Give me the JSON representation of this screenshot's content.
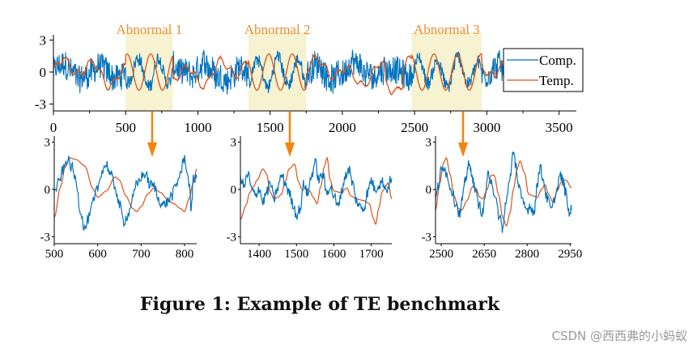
{
  "chart_data": {
    "type": "line",
    "colors": {
      "comp": "#0072bd",
      "temp": "#d95319",
      "highlight": "#f7f2d0",
      "arrow": "#f5820d",
      "region_label": "#f08a24"
    },
    "main": {
      "xlim": [
        0,
        3620
      ],
      "ylim": [
        -3.6,
        3.6
      ],
      "xticks": [
        0,
        500,
        1000,
        1500,
        2000,
        2500,
        3000,
        3500
      ],
      "yticks": [
        3,
        0,
        -3
      ],
      "legend": {
        "position": "top-right",
        "entries": [
          "Comp.",
          "Temp."
        ]
      },
      "series": [
        {
          "name": "Comp.",
          "key": "comp",
          "style": "noisy",
          "n": 3400,
          "amplitude": 1.0
        },
        {
          "name": "Temp.",
          "key": "temp",
          "style": "smooth",
          "n": 3400,
          "amplitude": 0.9
        }
      ],
      "regions": [
        {
          "label": "Abnormal 1",
          "range": [
            500,
            826
          ]
        },
        {
          "label": "Abnormal 2",
          "range": [
            1350,
            1750
          ]
        },
        {
          "label": "Abnormal 3",
          "range": [
            2480,
            2965
          ]
        }
      ]
    },
    "zooms": [
      {
        "name": "Abnormal 1 detail",
        "xlim": [
          500,
          828
        ],
        "ylim": [
          -3.3,
          3.3
        ],
        "xticks": [
          500,
          600,
          700,
          800
        ],
        "yticks": [
          3,
          0,
          -3
        ],
        "comp": [
          [
            500,
            -0.2
          ],
          [
            510,
            0.4
          ],
          [
            520,
            1.2
          ],
          [
            530,
            1.9
          ],
          [
            540,
            1.4
          ],
          [
            550,
            0.6
          ],
          [
            560,
            -1.3
          ],
          [
            570,
            -2.5
          ],
          [
            580,
            -1.8
          ],
          [
            590,
            -0.8
          ],
          [
            600,
            0.1
          ],
          [
            610,
            1.2
          ],
          [
            620,
            1.6
          ],
          [
            630,
            0.9
          ],
          [
            640,
            0.2
          ],
          [
            650,
            -1.0
          ],
          [
            660,
            -2.0
          ],
          [
            670,
            -1.6
          ],
          [
            680,
            -0.6
          ],
          [
            690,
            0.3
          ],
          [
            700,
            0.8
          ],
          [
            710,
            1.0
          ],
          [
            720,
            0.3
          ],
          [
            730,
            0.2
          ],
          [
            740,
            -0.6
          ],
          [
            750,
            -1.0
          ],
          [
            760,
            -0.8
          ],
          [
            770,
            -0.4
          ],
          [
            780,
            0.2
          ],
          [
            790,
            1.0
          ],
          [
            800,
            2.0
          ],
          [
            810,
            0.5
          ],
          [
            815,
            -1.2
          ],
          [
            820,
            0.6
          ],
          [
            828,
            0.7
          ]
        ],
        "temp": [
          [
            500,
            -1.8
          ],
          [
            515,
            0.2
          ],
          [
            525,
            1.4
          ],
          [
            535,
            2.0
          ],
          [
            550,
            1.9
          ],
          [
            570,
            1.5
          ],
          [
            590,
            0.0
          ],
          [
            600,
            -0.5
          ],
          [
            620,
            -0.1
          ],
          [
            640,
            0.8
          ],
          [
            650,
            0.6
          ],
          [
            665,
            -0.4
          ],
          [
            680,
            -1.2
          ],
          [
            690,
            -1.4
          ],
          [
            700,
            -1.1
          ],
          [
            715,
            -0.3
          ],
          [
            730,
            0.1
          ],
          [
            745,
            -0.2
          ],
          [
            760,
            -0.6
          ],
          [
            775,
            -0.9
          ],
          [
            790,
            -1.2
          ],
          [
            800,
            -1.4
          ],
          [
            810,
            -0.6
          ],
          [
            820,
            0.4
          ],
          [
            828,
            1.3
          ]
        ]
      },
      {
        "name": "Abnormal 2 detail",
        "xlim": [
          1350,
          1755
        ],
        "ylim": [
          -3.3,
          3.3
        ],
        "xticks": [
          1400,
          1500,
          1600,
          1700
        ],
        "yticks": [
          3,
          0,
          -3
        ],
        "comp": [
          [
            1350,
            0.8
          ],
          [
            1360,
            0.2
          ],
          [
            1370,
            1.0
          ],
          [
            1380,
            0.0
          ],
          [
            1390,
            -0.4
          ],
          [
            1400,
            0.1
          ],
          [
            1410,
            -0.8
          ],
          [
            1420,
            -0.2
          ],
          [
            1430,
            0.4
          ],
          [
            1440,
            -0.6
          ],
          [
            1450,
            0.1
          ],
          [
            1460,
            0.9
          ],
          [
            1470,
            0.4
          ],
          [
            1480,
            -0.2
          ],
          [
            1490,
            -0.9
          ],
          [
            1500,
            -1.6
          ],
          [
            1510,
            -1.2
          ],
          [
            1520,
            0.4
          ],
          [
            1530,
            -0.3
          ],
          [
            1540,
            0.9
          ],
          [
            1550,
            1.7
          ],
          [
            1560,
            0.6
          ],
          [
            1570,
            1.0
          ],
          [
            1580,
            -0.2
          ],
          [
            1590,
            0.2
          ],
          [
            1600,
            -0.4
          ],
          [
            1610,
            -1.1
          ],
          [
            1620,
            -0.2
          ],
          [
            1630,
            0.8
          ],
          [
            1640,
            1.3
          ],
          [
            1650,
            0.4
          ],
          [
            1660,
            -0.7
          ],
          [
            1670,
            -1.1
          ],
          [
            1680,
            -1.2
          ],
          [
            1690,
            -0.2
          ],
          [
            1700,
            0.6
          ],
          [
            1710,
            0.0
          ],
          [
            1720,
            0.3
          ],
          [
            1730,
            0.5
          ],
          [
            1740,
            0.0
          ],
          [
            1755,
            0.7
          ]
        ],
        "temp": [
          [
            1350,
            -1.9
          ],
          [
            1365,
            -1.0
          ],
          [
            1375,
            -0.2
          ],
          [
            1385,
            0.2
          ],
          [
            1395,
            0.6
          ],
          [
            1410,
            1.3
          ],
          [
            1420,
            1.0
          ],
          [
            1430,
            -0.2
          ],
          [
            1440,
            -0.6
          ],
          [
            1450,
            -0.5
          ],
          [
            1460,
            -0.3
          ],
          [
            1470,
            0.5
          ],
          [
            1480,
            1.3
          ],
          [
            1495,
            1.6
          ],
          [
            1505,
            0.5
          ],
          [
            1515,
            0.0
          ],
          [
            1525,
            0.1
          ],
          [
            1535,
            -0.1
          ],
          [
            1545,
            -0.5
          ],
          [
            1555,
            -0.9
          ],
          [
            1565,
            0.2
          ],
          [
            1575,
            1.5
          ],
          [
            1582,
            2.0
          ],
          [
            1590,
            0.6
          ],
          [
            1600,
            -0.1
          ],
          [
            1620,
            -0.2
          ],
          [
            1635,
            0.1
          ],
          [
            1645,
            -0.4
          ],
          [
            1660,
            -0.6
          ],
          [
            1680,
            -0.7
          ],
          [
            1695,
            -0.9
          ],
          [
            1705,
            -1.8
          ],
          [
            1712,
            -2.2
          ],
          [
            1720,
            -1.2
          ],
          [
            1730,
            -0.1
          ],
          [
            1745,
            0.4
          ],
          [
            1755,
            -0.6
          ]
        ]
      },
      {
        "name": "Abnormal 3 detail",
        "xlim": [
          2480,
          2955
        ],
        "ylim": [
          -3.3,
          3.3
        ],
        "xticks": [
          2500,
          2650,
          2800,
          2950
        ],
        "yticks": [
          3,
          0,
          -3
        ],
        "comp": [
          [
            2480,
            -0.6
          ],
          [
            2490,
            0.2
          ],
          [
            2500,
            1.2
          ],
          [
            2510,
            1.5
          ],
          [
            2520,
            0.9
          ],
          [
            2535,
            0.0
          ],
          [
            2550,
            -0.8
          ],
          [
            2565,
            -1.6
          ],
          [
            2575,
            -0.5
          ],
          [
            2585,
            0.7
          ],
          [
            2595,
            1.5
          ],
          [
            2605,
            1.2
          ],
          [
            2615,
            0.2
          ],
          [
            2630,
            -0.9
          ],
          [
            2645,
            -1.5
          ],
          [
            2655,
            -0.2
          ],
          [
            2665,
            1.0
          ],
          [
            2675,
            0.6
          ],
          [
            2690,
            -0.8
          ],
          [
            2705,
            -1.8
          ],
          [
            2715,
            -2.5
          ],
          [
            2725,
            -1.0
          ],
          [
            2740,
            0.8
          ],
          [
            2750,
            2.2
          ],
          [
            2760,
            1.7
          ],
          [
            2770,
            0.2
          ],
          [
            2785,
            -0.9
          ],
          [
            2800,
            -1.3
          ],
          [
            2810,
            -1.0
          ],
          [
            2825,
            -1.5
          ],
          [
            2835,
            0.4
          ],
          [
            2845,
            1.4
          ],
          [
            2855,
            0.7
          ],
          [
            2870,
            -0.6
          ],
          [
            2885,
            -1.3
          ],
          [
            2900,
            -0.3
          ],
          [
            2915,
            0.9
          ],
          [
            2925,
            0.5
          ],
          [
            2935,
            -0.2
          ],
          [
            2945,
            -1.4
          ],
          [
            2955,
            -1.3
          ]
        ],
        "temp": [
          [
            2480,
            -1.3
          ],
          [
            2495,
            0.4
          ],
          [
            2508,
            1.7
          ],
          [
            2518,
            2.0
          ],
          [
            2530,
            1.0
          ],
          [
            2545,
            -0.4
          ],
          [
            2560,
            -1.2
          ],
          [
            2572,
            -1.3
          ],
          [
            2590,
            -0.7
          ],
          [
            2610,
            0.2
          ],
          [
            2620,
            0.1
          ],
          [
            2635,
            -0.5
          ],
          [
            2645,
            -0.6
          ],
          [
            2660,
            0.0
          ],
          [
            2675,
            0.9
          ],
          [
            2685,
            0.9
          ],
          [
            2700,
            -0.3
          ],
          [
            2715,
            -1.8
          ],
          [
            2728,
            -2.3
          ],
          [
            2740,
            -1.5
          ],
          [
            2752,
            0.0
          ],
          [
            2765,
            1.3
          ],
          [
            2775,
            1.8
          ],
          [
            2790,
            1.1
          ],
          [
            2805,
            -0.3
          ],
          [
            2820,
            -0.4
          ],
          [
            2835,
            -0.5
          ],
          [
            2850,
            0.0
          ],
          [
            2862,
            0.3
          ],
          [
            2875,
            -0.3
          ],
          [
            2890,
            -0.8
          ],
          [
            2905,
            -0.1
          ],
          [
            2920,
            0.5
          ],
          [
            2935,
            0.6
          ],
          [
            2955,
            0.1
          ]
        ]
      }
    ]
  },
  "caption": "Figure 1: Example of TE benchmark",
  "watermark": "CSDN @西西弗的小蚂蚁"
}
